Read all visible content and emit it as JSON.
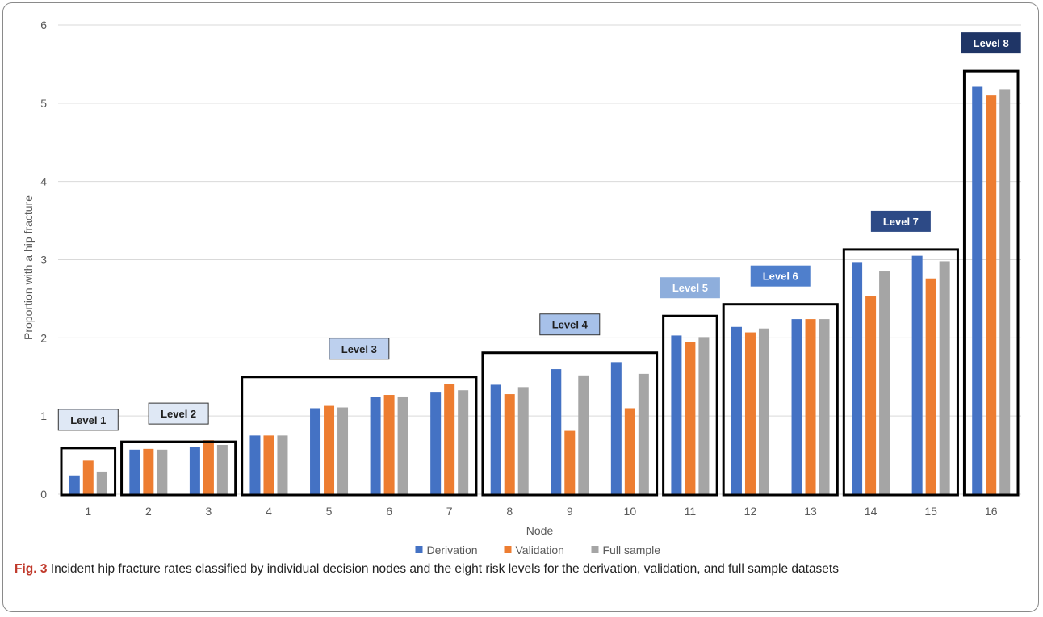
{
  "chart_data": {
    "type": "bar",
    "title": "",
    "xlabel": "Node",
    "ylabel": "Proportion with a hip fracture",
    "ylim": [
      0,
      6
    ],
    "yticks": [
      0,
      1,
      2,
      3,
      4,
      5,
      6
    ],
    "grid": true,
    "legend_position": "bottom",
    "categories": [
      "1",
      "2",
      "3",
      "4",
      "5",
      "6",
      "7",
      "8",
      "9",
      "10",
      "11",
      "12",
      "13",
      "14",
      "15",
      "16"
    ],
    "series": [
      {
        "name": "Derivation",
        "color": "#4472c4",
        "values": [
          0.24,
          0.57,
          0.6,
          0.75,
          1.1,
          1.24,
          1.3,
          1.4,
          1.6,
          1.69,
          2.03,
          2.14,
          2.24,
          2.96,
          3.05,
          5.21
        ]
      },
      {
        "name": "Validation",
        "color": "#ed7d31",
        "values": [
          0.43,
          0.58,
          0.69,
          0.75,
          1.13,
          1.27,
          1.41,
          1.28,
          0.81,
          1.1,
          1.95,
          2.07,
          2.24,
          2.53,
          2.76,
          5.1
        ]
      },
      {
        "name": "Full sample",
        "color": "#a5a5a5",
        "values": [
          0.29,
          0.57,
          0.63,
          0.75,
          1.11,
          1.25,
          1.33,
          1.37,
          1.52,
          1.54,
          2.01,
          2.12,
          2.24,
          2.85,
          2.98,
          5.18
        ]
      }
    ],
    "levels": [
      {
        "label": "Level 1",
        "first_node": 1,
        "last_node": 1,
        "box_top": 0.59,
        "fill": "#dfe8f5",
        "text_color": "#1f1f1f"
      },
      {
        "label": "Level 2",
        "first_node": 2,
        "last_node": 3,
        "box_top": 0.67,
        "fill": "#dfe8f5",
        "text_color": "#1f1f1f"
      },
      {
        "label": "Level 3",
        "first_node": 4,
        "last_node": 7,
        "box_top": 1.5,
        "fill": "#bdd0ee",
        "text_color": "#1f1f1f"
      },
      {
        "label": "Level 4",
        "first_node": 8,
        "last_node": 10,
        "box_top": 1.81,
        "fill": "#a7c1e9",
        "text_color": "#1f1f1f"
      },
      {
        "label": "Level 5",
        "first_node": 11,
        "last_node": 11,
        "box_top": 2.28,
        "fill": "#8eaedc",
        "text_color": "#ffffff"
      },
      {
        "label": "Level 6",
        "first_node": 12,
        "last_node": 13,
        "box_top": 2.43,
        "fill": "#4f7fcc",
        "text_color": "#ffffff"
      },
      {
        "label": "Level 7",
        "first_node": 14,
        "last_node": 15,
        "box_top": 3.13,
        "fill": "#2d4a86",
        "text_color": "#ffffff"
      },
      {
        "label": "Level 8",
        "first_node": 16,
        "last_node": 16,
        "box_top": 5.41,
        "fill": "#1f3566",
        "text_color": "#ffffff"
      }
    ]
  },
  "caption": {
    "fig_label": "Fig. 3",
    "text": "Incident hip fracture rates classified by individual decision nodes and the eight risk levels for the derivation, validation, and full sample datasets"
  }
}
